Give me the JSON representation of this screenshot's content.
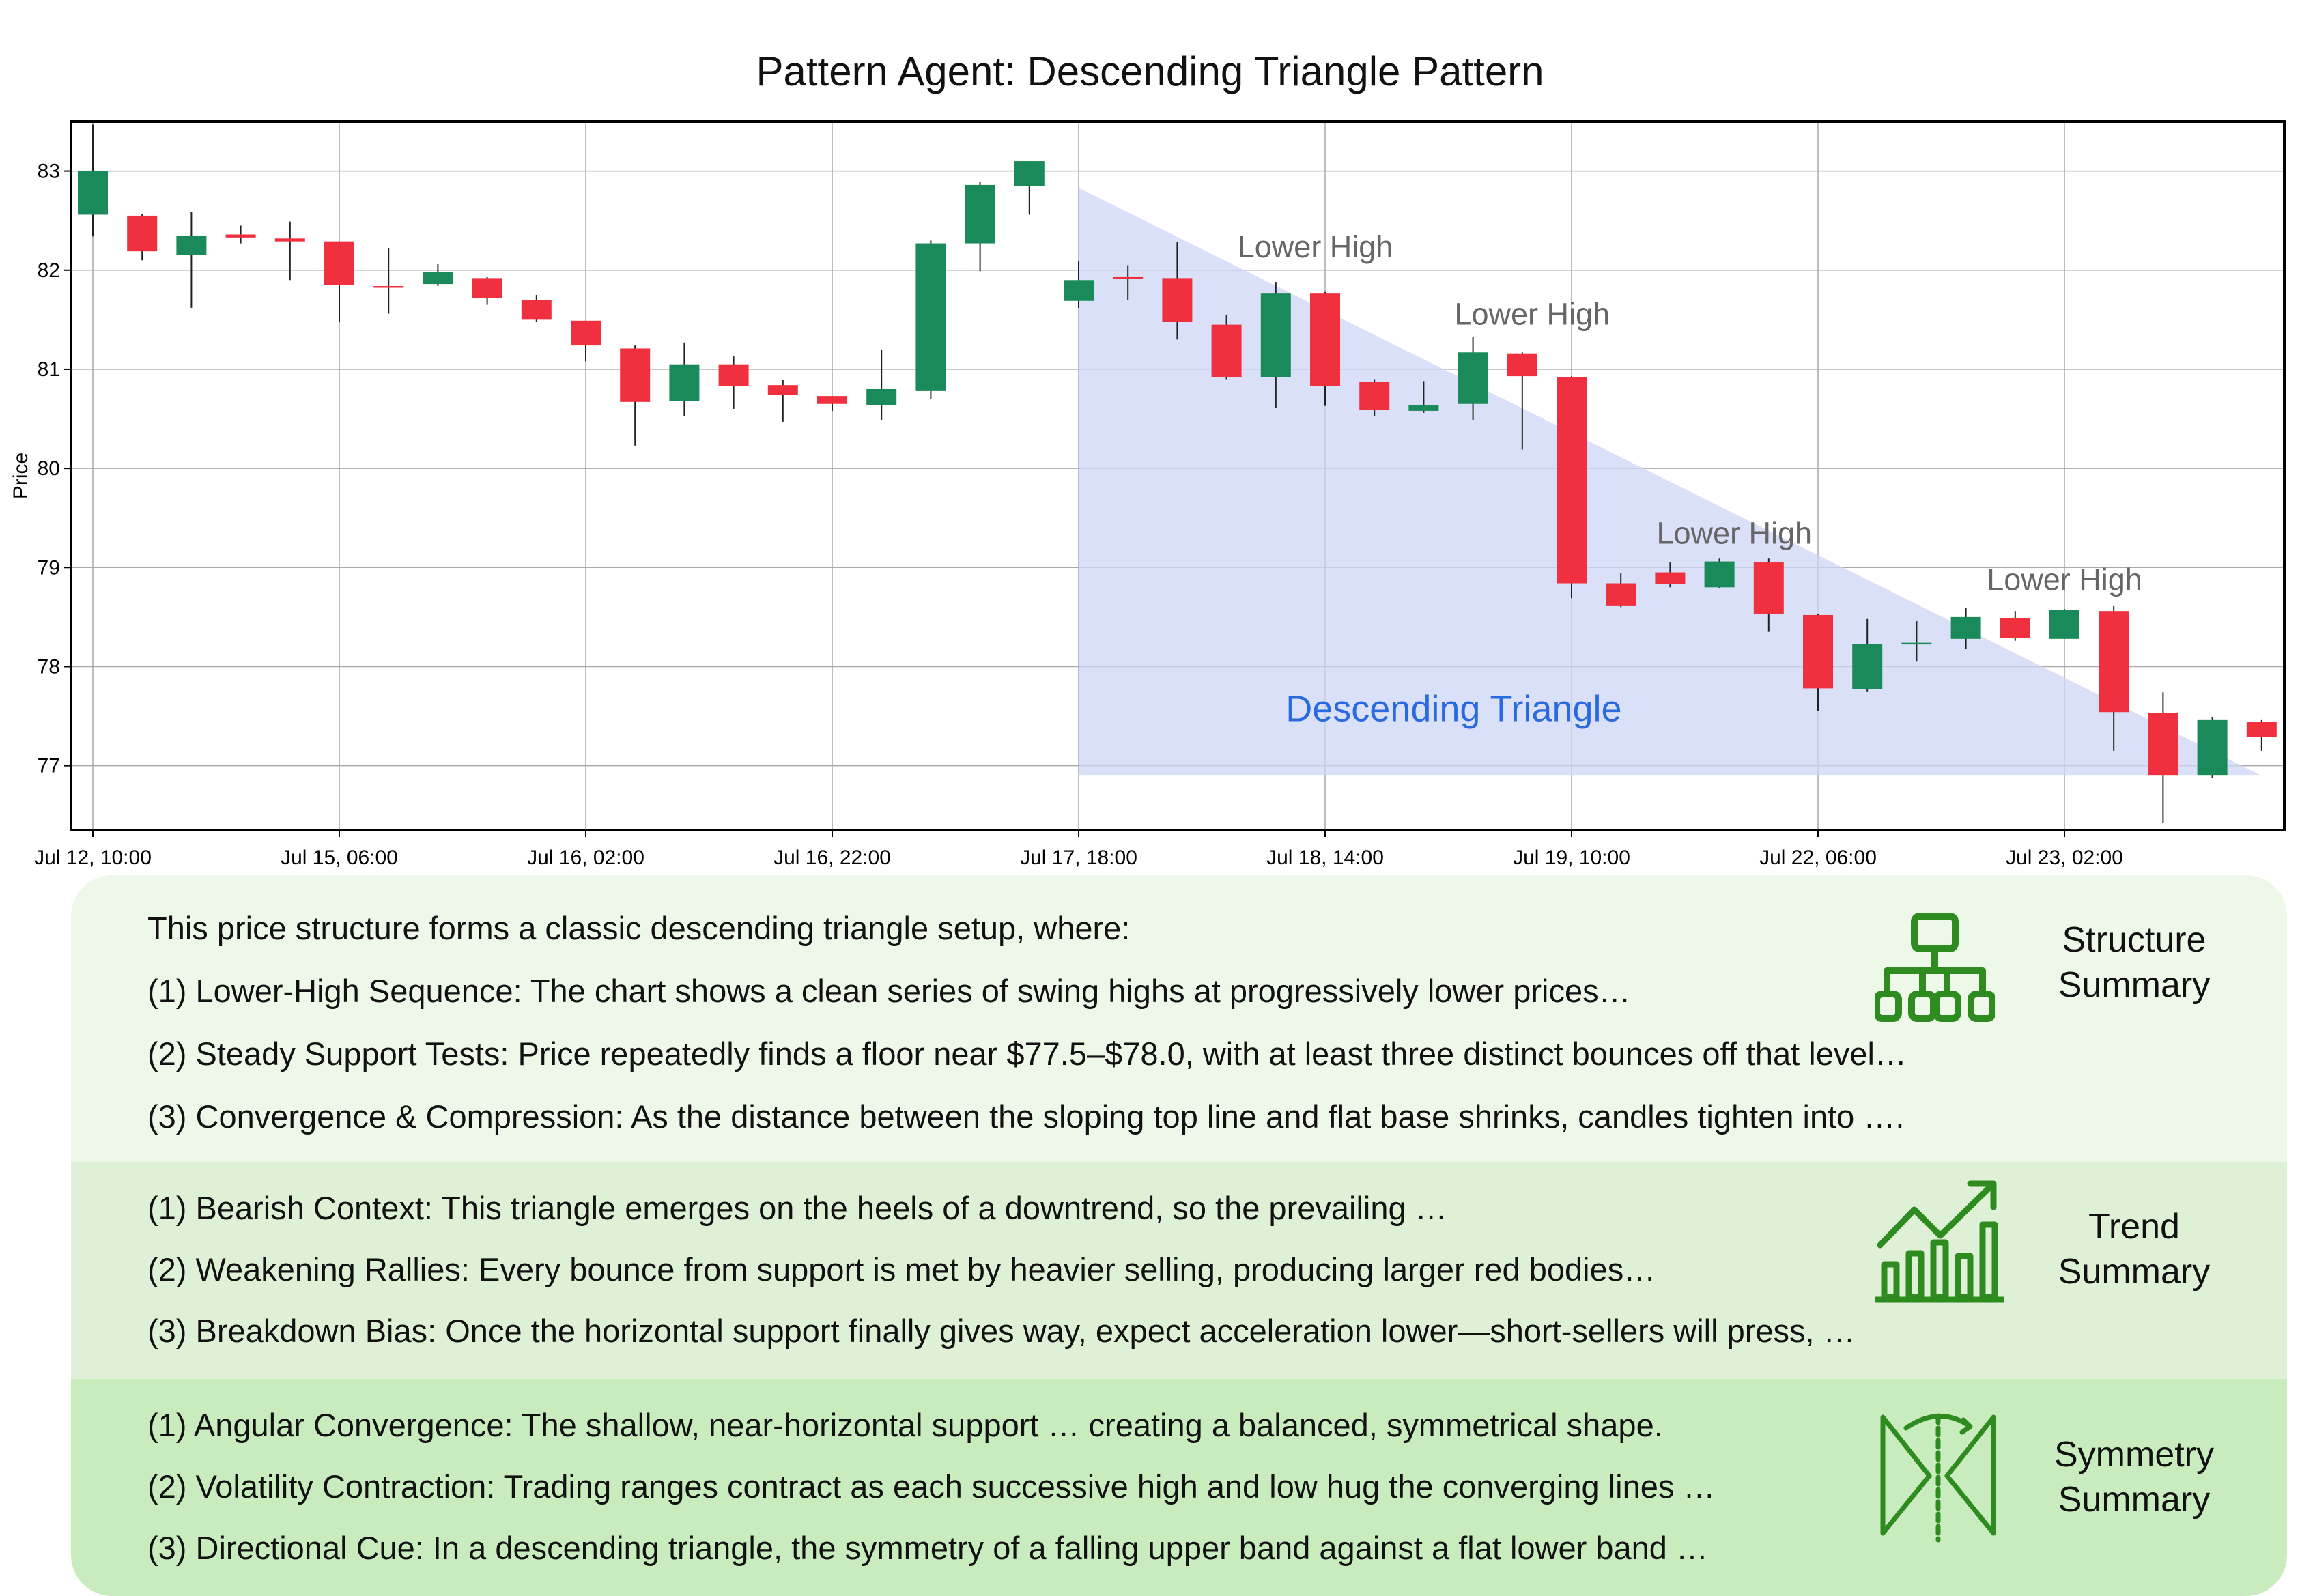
{
  "chart_data": {
    "type": "candlestick",
    "title": "Pattern Agent:  Descending Triangle Pattern",
    "ylabel": "Price",
    "ylim": [
      76.35,
      83.5
    ],
    "yticks": [
      77,
      78,
      79,
      80,
      81,
      82,
      83
    ],
    "xtick_labels": [
      "Jul 12, 10:00",
      "Jul 15, 06:00",
      "Jul 16, 02:00",
      "Jul 16, 22:00",
      "Jul 17, 18:00",
      "Jul 18, 14:00",
      "Jul 19, 10:00",
      "Jul 22, 06:00",
      "Jul 23, 02:00"
    ],
    "xtick_every": 5,
    "grid": true,
    "colors": {
      "up": "#1b8a5a",
      "down": "#f0303f",
      "triangle": "#cdd5f4",
      "annotation": "#666666",
      "pattern_label": "#2a6ae0"
    },
    "candles": [
      {
        "o": 82.56,
        "h": 83.47,
        "l": 82.34,
        "c": 83.0
      },
      {
        "o": 82.55,
        "h": 82.57,
        "l": 82.1,
        "c": 82.19
      },
      {
        "o": 82.15,
        "h": 82.59,
        "l": 81.62,
        "c": 82.35
      },
      {
        "o": 82.36,
        "h": 82.45,
        "l": 82.27,
        "c": 82.33
      },
      {
        "o": 82.32,
        "h": 82.49,
        "l": 81.9,
        "c": 82.29
      },
      {
        "o": 82.29,
        "h": 82.29,
        "l": 81.48,
        "c": 81.85
      },
      {
        "o": 81.84,
        "h": 82.22,
        "l": 81.56,
        "c": 81.83
      },
      {
        "o": 81.86,
        "h": 82.06,
        "l": 81.84,
        "c": 81.98
      },
      {
        "o": 81.92,
        "h": 81.93,
        "l": 81.65,
        "c": 81.72
      },
      {
        "o": 81.7,
        "h": 81.75,
        "l": 81.48,
        "c": 81.5
      },
      {
        "o": 81.49,
        "h": 81.49,
        "l": 81.08,
        "c": 81.24
      },
      {
        "o": 81.21,
        "h": 81.24,
        "l": 80.23,
        "c": 80.67
      },
      {
        "o": 80.68,
        "h": 81.27,
        "l": 80.53,
        "c": 81.05
      },
      {
        "o": 81.05,
        "h": 81.13,
        "l": 80.6,
        "c": 80.83
      },
      {
        "o": 80.84,
        "h": 80.89,
        "l": 80.47,
        "c": 80.74
      },
      {
        "o": 80.73,
        "h": 80.73,
        "l": 80.58,
        "c": 80.65
      },
      {
        "o": 80.64,
        "h": 81.2,
        "l": 80.49,
        "c": 80.8
      },
      {
        "o": 80.78,
        "h": 82.3,
        "l": 80.7,
        "c": 82.27
      },
      {
        "o": 82.27,
        "h": 82.89,
        "l": 81.99,
        "c": 82.86
      },
      {
        "o": 82.85,
        "h": 83.1,
        "l": 82.56,
        "c": 83.1
      },
      {
        "o": 81.69,
        "h": 82.09,
        "l": 81.62,
        "c": 81.9
      },
      {
        "o": 81.93,
        "h": 82.05,
        "l": 81.7,
        "c": 81.91
      },
      {
        "o": 81.92,
        "h": 82.28,
        "l": 81.3,
        "c": 81.48
      },
      {
        "o": 81.45,
        "h": 81.55,
        "l": 80.9,
        "c": 80.92
      },
      {
        "o": 80.92,
        "h": 81.88,
        "l": 80.61,
        "c": 81.77
      },
      {
        "o": 81.77,
        "h": 81.78,
        "l": 80.63,
        "c": 80.83
      },
      {
        "o": 80.87,
        "h": 80.9,
        "l": 80.53,
        "c": 80.59
      },
      {
        "o": 80.58,
        "h": 80.88,
        "l": 80.56,
        "c": 80.64
      },
      {
        "o": 80.65,
        "h": 81.33,
        "l": 80.49,
        "c": 81.17
      },
      {
        "o": 81.16,
        "h": 81.17,
        "l": 80.19,
        "c": 80.93
      },
      {
        "o": 80.92,
        "h": 80.93,
        "l": 78.69,
        "c": 78.84
      },
      {
        "o": 78.84,
        "h": 78.94,
        "l": 78.6,
        "c": 78.61
      },
      {
        "o": 78.95,
        "h": 79.05,
        "l": 78.8,
        "c": 78.83
      },
      {
        "o": 78.8,
        "h": 79.09,
        "l": 78.79,
        "c": 79.06
      },
      {
        "o": 79.05,
        "h": 79.09,
        "l": 78.35,
        "c": 78.53
      },
      {
        "o": 78.52,
        "h": 78.53,
        "l": 77.55,
        "c": 77.78
      },
      {
        "o": 77.77,
        "h": 78.48,
        "l": 77.75,
        "c": 78.23
      },
      {
        "o": 78.23,
        "h": 78.46,
        "l": 78.05,
        "c": 78.24
      },
      {
        "o": 78.28,
        "h": 78.59,
        "l": 78.18,
        "c": 78.5
      },
      {
        "o": 78.49,
        "h": 78.56,
        "l": 78.26,
        "c": 78.29
      },
      {
        "o": 78.28,
        "h": 78.58,
        "l": 78.28,
        "c": 78.57
      },
      {
        "o": 78.56,
        "h": 78.61,
        "l": 77.15,
        "c": 77.54
      },
      {
        "o": 77.53,
        "h": 77.74,
        "l": 76.42,
        "c": 76.9
      },
      {
        "o": 76.9,
        "h": 77.49,
        "l": 76.88,
        "c": 77.46
      },
      {
        "o": 77.44,
        "h": 77.46,
        "l": 77.15,
        "c": 77.29
      }
    ],
    "triangle": {
      "start_index": 20.0,
      "end_index": 44.0,
      "top_start": 82.83,
      "top_end": 76.9,
      "base": 76.9
    },
    "annotations": [
      {
        "text": "Lower High",
        "x_index": 24.8,
        "y": 82.13
      },
      {
        "text": "Lower High",
        "x_index": 29.2,
        "y": 81.45
      },
      {
        "text": "Lower High",
        "x_index": 33.3,
        "y": 79.24
      },
      {
        "text": "Lower High",
        "x_index": 40.0,
        "y": 78.77
      },
      {
        "text": "Descending Triangle",
        "x_index": 24.2,
        "y": 77.45,
        "style": "pattern"
      }
    ]
  },
  "panels": {
    "structure": {
      "label_line1": "Structure",
      "label_line2": "Summary",
      "icon": "hierarchy-icon",
      "intro": "This price structure forms a classic descending triangle setup, where:",
      "lines": [
        "(1) Lower-High Sequence: The chart shows a clean series of swing highs at progressively lower prices…",
        "(2) Steady Support Tests: Price repeatedly finds a floor near $77.5–$78.0, with at least three distinct bounces off that level…",
        "(3) Convergence & Compression: As the distance between the sloping top line and flat base shrinks, candles tighten into …."
      ]
    },
    "trend": {
      "label_line1": "Trend",
      "label_line2": "Summary",
      "icon": "trend-chart-icon",
      "lines": [
        "(1) Bearish Context: This triangle emerges on the heels of a downtrend, so the prevailing …",
        "(2) Weakening Rallies: Every bounce from support is met by heavier selling, producing larger red bodies…",
        "(3) Breakdown Bias: Once the horizontal support finally gives way, expect acceleration lower—short-sellers will press, …"
      ]
    },
    "symmetry": {
      "label_line1": "Symmetry",
      "label_line2": "Summary",
      "icon": "symmetry-icon",
      "lines": [
        "(1) Angular Convergence: The shallow, near-horizontal support … creating a balanced, symmetrical shape.",
        "(2) Volatility Contraction: Trading ranges contract as each successive high and low hug the converging lines …",
        "(3) Directional Cue: In a descending triangle, the symmetry of a falling upper band against a flat lower band …"
      ]
    }
  }
}
